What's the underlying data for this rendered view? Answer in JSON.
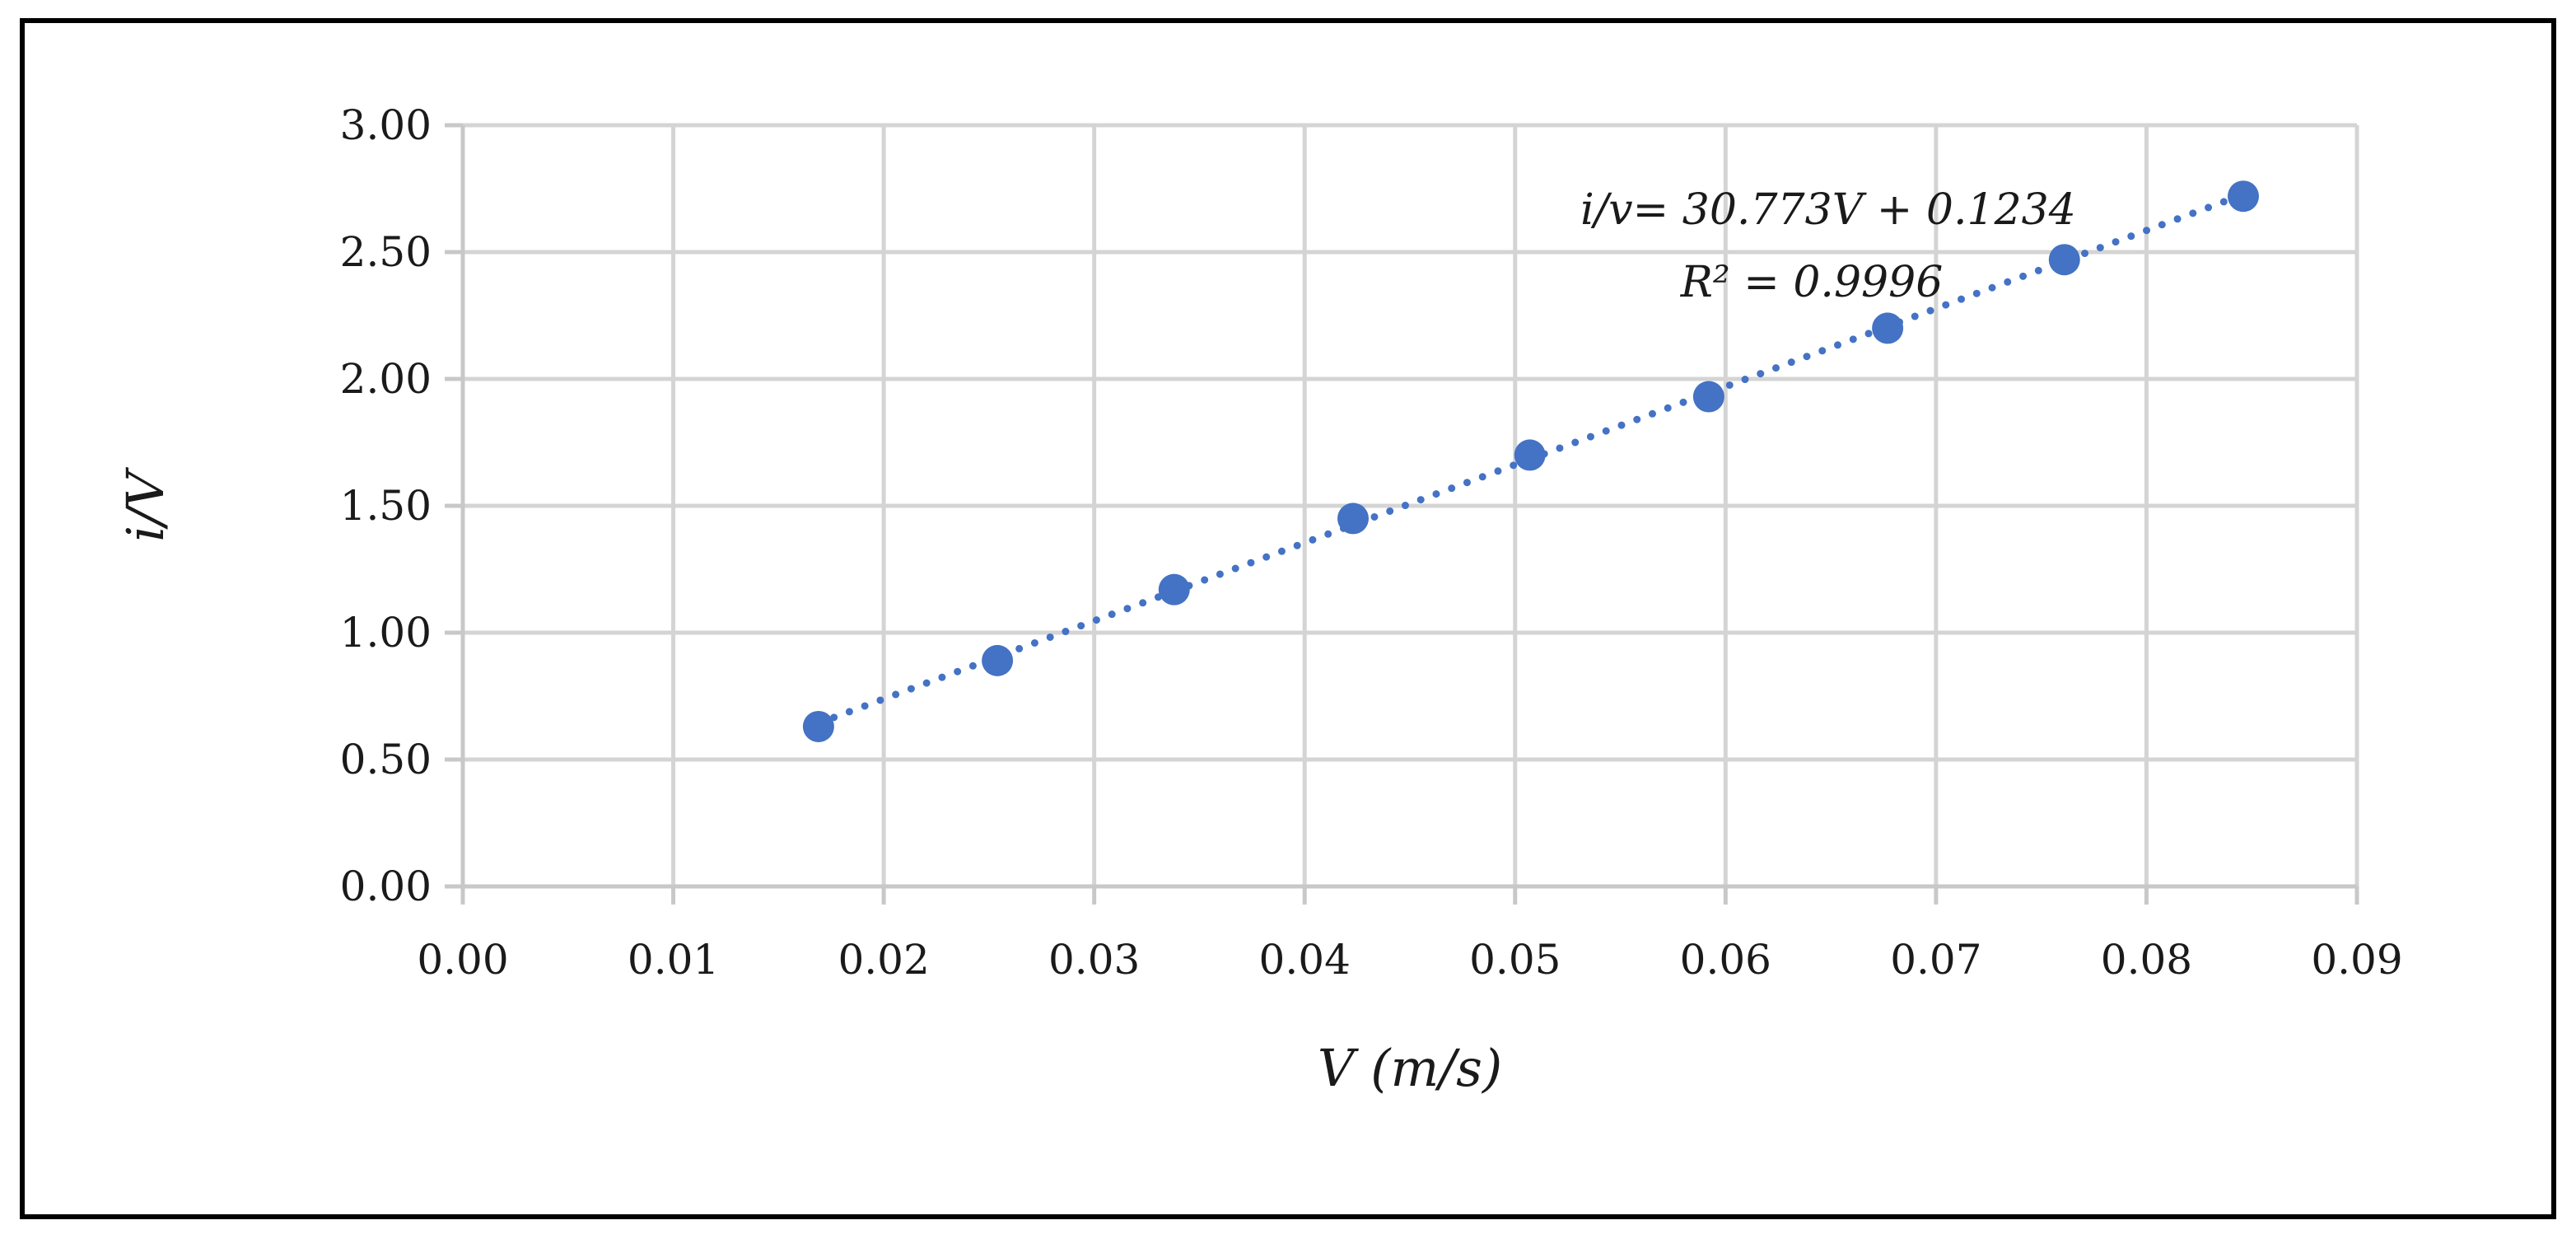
{
  "chart_data": {
    "type": "scatter",
    "title": "",
    "xlabel": "V (m/s)",
    "ylabel": "i/V",
    "xlim": [
      0,
      0.09
    ],
    "ylim": [
      0,
      3
    ],
    "x_ticks": [
      0,
      0.01,
      0.02,
      0.03,
      0.04,
      0.05,
      0.06,
      0.07,
      0.08,
      0.09
    ],
    "y_ticks": [
      0,
      0.5,
      1,
      1.5,
      2,
      2.5,
      3
    ],
    "x_tick_labels": [
      "0.00",
      "0.01",
      "0.02",
      "0.03",
      "0.04",
      "0.05",
      "0.06",
      "0.07",
      "0.08",
      "0.09"
    ],
    "y_tick_labels": [
      "0.00",
      "0.50",
      "1.00",
      "1.50",
      "2.00",
      "2.50",
      "3.00"
    ],
    "grid": true,
    "series": [
      {
        "name": "i/V",
        "color": "#4472c4",
        "x": [
          0.0169,
          0.0254,
          0.0338,
          0.0423,
          0.0507,
          0.0592,
          0.0677,
          0.0761,
          0.0846
        ],
        "y": [
          0.63,
          0.89,
          1.17,
          1.45,
          1.7,
          1.93,
          2.2,
          2.47,
          2.72
        ]
      }
    ],
    "trendline": {
      "type": "linear",
      "slope": 30.773,
      "intercept": 0.1234,
      "x_range": [
        0.0169,
        0.0846
      ],
      "color": "#4472c4",
      "style": "dotted"
    },
    "annotations": {
      "equation": "i/v= 30.773V + 0.1234",
      "r_squared": "R² = 0.9996"
    }
  }
}
